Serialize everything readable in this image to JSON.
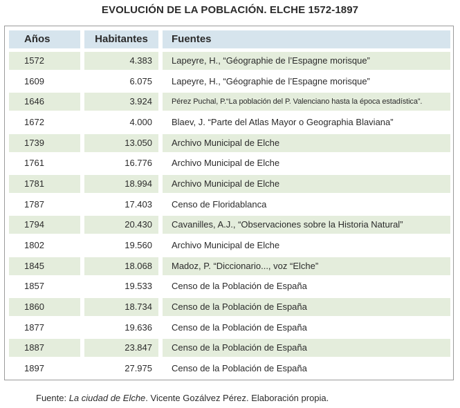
{
  "title": "EVOLUCIÓN DE LA POBLACIÓN. ELCHE 1572-1897",
  "table": {
    "headers": {
      "year": "Años",
      "population": "Habitantes",
      "source": "Fuentes"
    },
    "rows": [
      {
        "year": "1572",
        "population": "4.383",
        "source": "Lapeyre, H., “Géographie de l’Espagne morisque”"
      },
      {
        "year": "1609",
        "population": "6.075",
        "source": "Lapeyre, H., “Géographie de l’Espagne morisque”"
      },
      {
        "year": "1646",
        "population": "3.924",
        "source": "Pérez Puchal, P.“La población del P. Valenciano hasta la época estadística”."
      },
      {
        "year": "1672",
        "population": "4.000",
        "source": "Blaev, J. “Parte del Atlas Mayor o Geographia Blaviana”"
      },
      {
        "year": "1739",
        "population": "13.050",
        "source": "Archivo Municipal de Elche"
      },
      {
        "year": "1761",
        "population": "16.776",
        "source": "Archivo Municipal de Elche"
      },
      {
        "year": "1781",
        "population": "18.994",
        "source": "Archivo Municipal de Elche"
      },
      {
        "year": "1787",
        "population": "17.403",
        "source": "Censo de Floridablanca"
      },
      {
        "year": "1794",
        "population": "20.430",
        "source": "Cavanilles, A.J., “Observaciones sobre la Historia Natural”"
      },
      {
        "year": "1802",
        "population": "19.560",
        "source": "Archivo Municipal de Elche"
      },
      {
        "year": "1845",
        "population": "18.068",
        "source": "Madoz, P. “Diccionario..., voz “Elche”"
      },
      {
        "year": "1857",
        "population": "19.533",
        "source": "Censo de la Población de España"
      },
      {
        "year": "1860",
        "population": "18.734",
        "source": "Censo de la Población de España"
      },
      {
        "year": "1877",
        "population": "19.636",
        "source": "Censo de la Población de España"
      },
      {
        "year": "1887",
        "population": "23.847",
        "source": "Censo de la Población de España"
      },
      {
        "year": "1897",
        "population": "27.975",
        "source": "Censo de la Población de España"
      }
    ]
  },
  "footer": {
    "prefix": "Fuente: ",
    "book": "La ciudad de Elche",
    "rest": ". Vicente Gozálvez Pérez. Elaboración propia."
  },
  "colors": {
    "header_bg": "#d6e4ed",
    "stripe_bg": "#e4eddc",
    "border": "#9a9a9a",
    "text": "#2b2b2b"
  }
}
